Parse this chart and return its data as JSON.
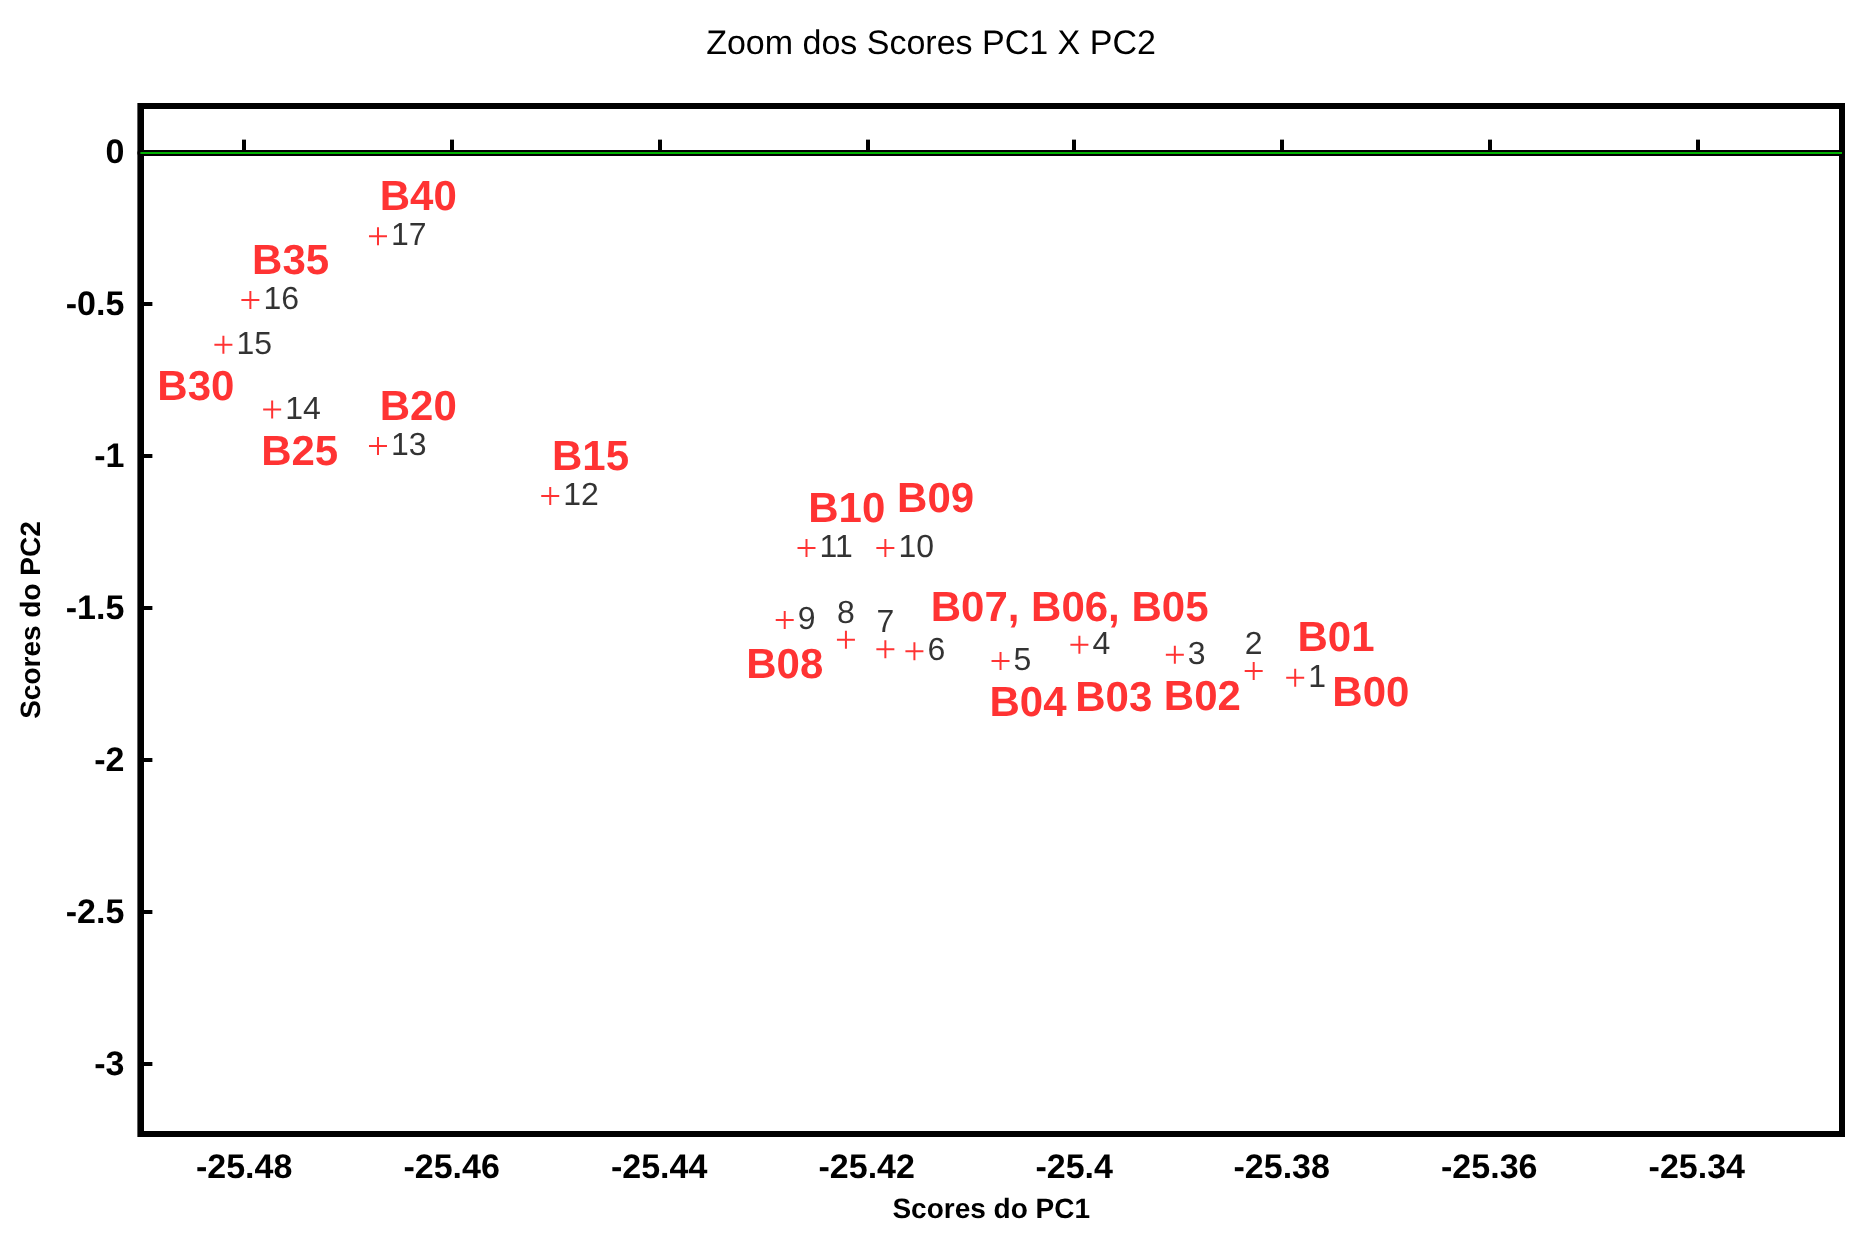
{
  "chart_data": {
    "type": "scatter",
    "title": "Zoom dos Scores PC1 X PC2",
    "xlabel": "Scores do PC1",
    "ylabel": "Scores do PC2",
    "series": [
      {
        "name": "1",
        "color": "#ff0000",
        "x": [
          -25.3787
        ],
        "values": [
          -1.73
        ]
      },
      {
        "name": "2",
        "color": "#ff0000",
        "x": [
          -25.3827
        ],
        "values": [
          -1.708
        ]
      },
      {
        "name": "3",
        "color": "#ff0000",
        "x": [
          -25.3903
        ],
        "values": [
          -1.654
        ]
      },
      {
        "name": "4",
        "color": "#ff0000",
        "x": [
          -25.3995
        ],
        "values": [
          -1.621
        ]
      },
      {
        "name": "5",
        "color": "#ff0000",
        "x": [
          -25.4071
        ],
        "values": [
          -1.675
        ]
      },
      {
        "name": "6",
        "color": "#ff0000",
        "x": [
          -25.4154
        ],
        "values": [
          -1.643
        ]
      },
      {
        "name": "7",
        "color": "#ff0000",
        "x": [
          -25.4182
        ],
        "values": [
          -1.636
        ]
      },
      {
        "name": "8",
        "color": "#ff0000",
        "x": [
          -25.422
        ],
        "values": [
          -1.605
        ]
      },
      {
        "name": "9",
        "color": "#ff0000",
        "x": [
          -25.4279
        ],
        "values": [
          -1.54
        ]
      },
      {
        "name": "10",
        "color": "#ff0000",
        "x": [
          -25.4182
        ],
        "values": [
          -1.303
        ]
      },
      {
        "name": "11",
        "color": "#ff0000",
        "x": [
          -25.4258
        ],
        "values": [
          -1.303
        ]
      },
      {
        "name": "12",
        "color": "#ff0000",
        "x": [
          -25.4505
        ],
        "values": [
          -1.132
        ]
      },
      {
        "name": "13",
        "color": "#ff0000",
        "x": [
          -25.4671
        ],
        "values": [
          -0.968
        ]
      },
      {
        "name": "14",
        "color": "#ff0000",
        "x": [
          -25.4773
        ],
        "values": [
          -0.848
        ]
      },
      {
        "name": "15",
        "color": "#ff0000",
        "x": [
          -25.482
        ],
        "values": [
          -0.635
        ]
      },
      {
        "name": "16",
        "color": "#ff0000",
        "x": [
          -25.4794
        ],
        "values": [
          -0.488
        ]
      },
      {
        "name": "17",
        "color": "#ff0000",
        "x": [
          -25.4671
        ],
        "values": [
          -0.278
        ]
      }
    ],
    "marker": "cross",
    "grid": false,
    "xlim": [
      -25.49,
      -25.326
    ],
    "xticks": [
      -25.48,
      -25.46,
      -25.44,
      -25.42,
      -25.4,
      -25.38,
      -25.36,
      -25.34
    ],
    "ylim": [
      -3.23,
      0.15
    ],
    "yticks": [
      0,
      -0.5,
      -1,
      -1.5,
      -2,
      -2.5,
      -3
    ],
    "ref_lines": [
      {
        "axis": "y",
        "value": 0,
        "color": "#00b000"
      }
    ],
    "annotations": [
      {
        "text": "B40",
        "x": -25.4671,
        "y": -0.278
      },
      {
        "text": "B35",
        "x": -25.4794,
        "y": -0.488
      },
      {
        "text": "B30",
        "x": -25.482,
        "y": -0.635
      },
      {
        "text": "B25",
        "x": -25.4773,
        "y": -0.848
      },
      {
        "text": "B20",
        "x": -25.4671,
        "y": -0.968
      },
      {
        "text": "B15",
        "x": -25.4505,
        "y": -1.132
      },
      {
        "text": "B10",
        "x": -25.4258,
        "y": -1.303
      },
      {
        "text": "B09",
        "x": -25.4182,
        "y": -1.303
      },
      {
        "text": "B08",
        "x": -25.4279,
        "y": -1.54
      },
      {
        "text": "B07, B06, B05",
        "x": -25.4182,
        "y": -1.636
      },
      {
        "text": "B04",
        "x": -25.4071,
        "y": -1.675
      },
      {
        "text": "B03",
        "x": -25.3995,
        "y": -1.621
      },
      {
        "text": "B02",
        "x": -25.3903,
        "y": -1.654
      },
      {
        "text": "B01",
        "x": -25.3827,
        "y": -1.708
      },
      {
        "text": "B00",
        "x": -25.3787,
        "y": -1.73
      }
    ]
  }
}
